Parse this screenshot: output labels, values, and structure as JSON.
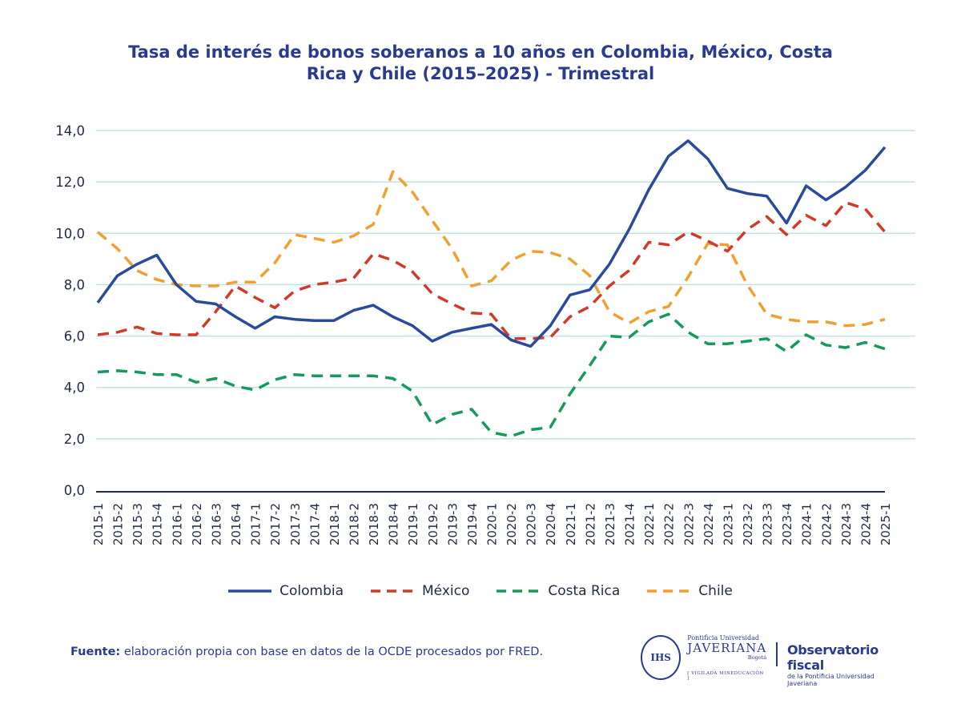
{
  "chart_data": {
    "type": "line",
    "title": "Tasa de interés de bonos soberanos a 10 años en Colombia, México, Costa Rica y Chile (2015–2025) - Trimestral",
    "ylim": [
      0,
      14
    ],
    "yticks": [
      0,
      2,
      4,
      6,
      8,
      10,
      12,
      14
    ],
    "ytick_labels": [
      "0,0",
      "2,0",
      "4,0",
      "6,0",
      "8,0",
      "10,0",
      "12,0",
      "14,0"
    ],
    "grid": true,
    "legend_position": "bottom",
    "categories": [
      "2015-1",
      "2015-2",
      "2015-3",
      "2015-4",
      "2016-1",
      "2016-2",
      "2016-3",
      "2016-4",
      "2017-1",
      "2017-2",
      "2017-3",
      "2017-4",
      "2018-1",
      "2018-2",
      "2018-3",
      "2018-4",
      "2019-1",
      "2019-2",
      "2019-3",
      "2019-4",
      "2020-1",
      "2020-2",
      "2020-3",
      "2020-4",
      "2021-1",
      "2021-2",
      "2021-3",
      "2021-4",
      "2022-1",
      "2022-2",
      "2022-3",
      "2022-4",
      "2023-1",
      "2023-2",
      "2023-3",
      "2023-4",
      "2024-1",
      "2024-2",
      "2024-3",
      "2024-4",
      "2025-1"
    ],
    "series": [
      {
        "name": "Colombia",
        "color": "#2a4a9b",
        "dash": "solid",
        "values": [
          7.3,
          8.35,
          8.8,
          9.15,
          8.0,
          7.35,
          7.25,
          6.75,
          6.3,
          6.75,
          6.65,
          6.6,
          6.6,
          7.0,
          7.2,
          6.75,
          6.4,
          5.8,
          6.15,
          6.3,
          6.45,
          5.85,
          5.6,
          6.4,
          7.6,
          7.8,
          8.8,
          10.15,
          11.7,
          13.0,
          13.6,
          12.9,
          11.75,
          11.55,
          11.45,
          10.4,
          11.85,
          11.3,
          11.8,
          12.45,
          13.35
        ]
      },
      {
        "name": "México",
        "color": "#d03a2b",
        "dash": "dashed",
        "values": [
          6.05,
          6.15,
          6.35,
          6.1,
          6.05,
          6.05,
          6.95,
          7.95,
          7.5,
          7.1,
          7.75,
          8.0,
          8.1,
          8.25,
          9.2,
          8.95,
          8.5,
          7.65,
          7.25,
          6.9,
          6.85,
          5.9,
          5.9,
          5.95,
          6.75,
          7.15,
          7.95,
          8.55,
          9.65,
          9.55,
          10.05,
          9.7,
          9.3,
          10.15,
          10.65,
          9.95,
          10.7,
          10.3,
          11.2,
          10.95,
          10.05
        ]
      },
      {
        "name": "Costa Rica",
        "color": "#159a5a",
        "dash": "dashed",
        "values": [
          4.6,
          4.65,
          4.6,
          4.5,
          4.5,
          4.2,
          4.35,
          4.05,
          3.9,
          4.3,
          4.5,
          4.45,
          4.45,
          4.45,
          4.45,
          4.35,
          3.85,
          2.55,
          2.95,
          3.15,
          2.25,
          2.1,
          2.35,
          2.45,
          3.75,
          4.85,
          6.0,
          5.95,
          6.55,
          6.85,
          6.15,
          5.7,
          5.7,
          5.8,
          5.9,
          5.4,
          6.05,
          5.65,
          5.55,
          5.75,
          5.5
        ]
      },
      {
        "name": "Chile",
        "color": "#f0a030",
        "dash": "dashed",
        "values": [
          10.05,
          9.4,
          8.55,
          8.2,
          8.0,
          7.95,
          7.95,
          8.1,
          8.1,
          8.85,
          9.95,
          9.8,
          9.65,
          9.9,
          10.35,
          12.4,
          11.6,
          10.5,
          9.4,
          7.95,
          8.15,
          8.95,
          9.3,
          9.25,
          9.0,
          8.35,
          6.95,
          6.5,
          6.95,
          7.15,
          8.3,
          9.6,
          9.55,
          8.0,
          6.85,
          6.65,
          6.55,
          6.55,
          6.4,
          6.45,
          6.65
        ]
      }
    ]
  },
  "source": {
    "label": "Fuente:",
    "text": " elaboración propia con base en datos de la OCDE procesados por FRED."
  },
  "logos": {
    "seal_text": "IHS",
    "univ_line1": "Pontificia Universidad",
    "univ_line2": "JAVERIANA",
    "univ_line3": "Bogotá",
    "univ_line4": "[ VIGILADA MINEDUCACIÓN ]",
    "obs_line1": "Observatorio fiscal",
    "obs_line2": "de la Pontificia Universidad Javeriana"
  }
}
